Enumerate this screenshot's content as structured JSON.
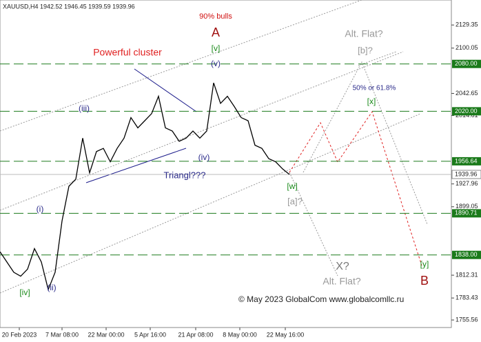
{
  "chart_data": {
    "type": "line",
    "title": "XAUUSD,H4  1942.52 1946.45 1939.59 1939.96",
    "x": [
      0,
      5,
      10,
      15,
      20,
      25,
      30,
      35,
      40,
      45,
      50,
      55,
      60,
      65,
      70,
      75,
      80,
      85,
      90,
      95,
      100,
      105,
      110,
      115,
      120,
      125,
      130,
      135,
      140,
      145,
      150,
      155,
      160,
      165,
      170,
      175,
      180,
      185,
      190,
      195,
      200,
      205,
      210
    ],
    "series": [
      {
        "name": "XAUUSD",
        "color": "#000000",
        "values": [
          1842,
          1829,
          1816,
          1811,
          1820,
          1846,
          1829,
          1794,
          1816,
          1881,
          1925,
          1934,
          1986,
          1942,
          1969,
          1973,
          1956,
          1973,
          1986,
          2012,
          1999,
          2008,
          2017,
          2039,
          1999,
          1995,
          1982,
          1986,
          1995,
          1986,
          1995,
          2056,
          2030,
          2039,
          2026,
          2012,
          2008,
          1977,
          1973,
          1960,
          1956,
          1947,
          1940
        ]
      }
    ],
    "xlim": [
      0,
      327.5
    ],
    "xticks": [
      {
        "value": 14,
        "label": "20 Feb 2023"
      },
      {
        "value": 45,
        "label": "7 Mar 08:00"
      },
      {
        "value": 77,
        "label": "22 Mar 00:00"
      },
      {
        "value": 109,
        "label": "5 Apr 16:00"
      },
      {
        "value": 142,
        "label": "21 Apr 08:00"
      },
      {
        "value": 174,
        "label": "8 May 00:00"
      },
      {
        "value": 207,
        "label": "22 May 16:00"
      }
    ],
    "ylim": [
      1746,
      2161
    ],
    "yticks": [
      2129.35,
      2100.05,
      2042.65,
      2014.61,
      1927.96,
      1899.05,
      1812.31,
      1783.43,
      1755.56
    ],
    "levels": [
      {
        "value": 2080,
        "label": "2080.00"
      },
      {
        "value": 2020,
        "label": "2020.00"
      },
      {
        "value": 1956.64,
        "label": "1956.64"
      },
      {
        "value": 1890.71,
        "label": "1890.71"
      },
      {
        "value": 1838,
        "label": "1838.00"
      }
    ],
    "level_color": "#1a7a1a",
    "current_price": 1939.96,
    "annotations": [
      "90% bulls",
      "A",
      "[v]",
      "(v)",
      "Powerful cluster",
      "(iii)",
      "(iv)",
      "Triangl???",
      "(i)",
      "(ii)",
      "[iv]",
      "Alt. Flat?",
      "[b]?",
      "50% or 61.8%",
      "[x]",
      "[w]",
      "[a]?",
      "X?",
      "Alt. Flat?",
      "[y]",
      "B",
      "© May 2023 GlobalCom www.globalcomllc.ru"
    ]
  }
}
